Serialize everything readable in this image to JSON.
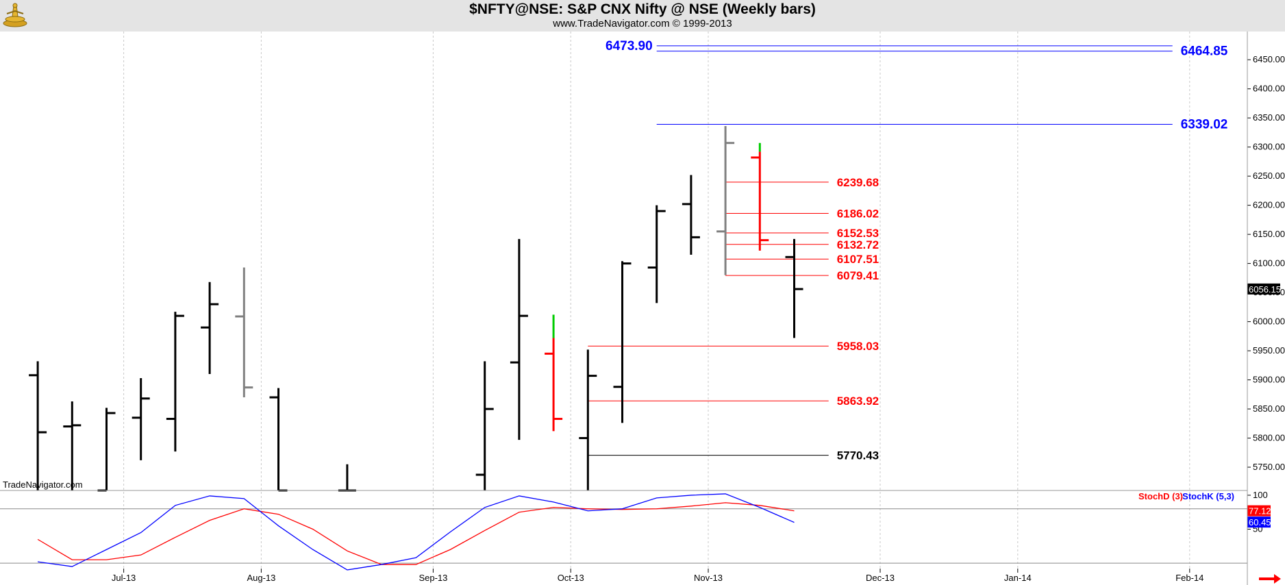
{
  "header": {
    "title": "$NFTY@NSE:  S&P CNX Nifty @ NSE  (Weekly bars)",
    "subtitle": "www.TradeNavigator.com © 1999-2013"
  },
  "watermark": "TradeNavigator.com",
  "colors": {
    "bar_black": "#000000",
    "bar_gray": "#808080",
    "bar_red": "#ff0000",
    "bar_green": "#00cc00",
    "level_blue": "#0000ff",
    "level_red": "#ff0000",
    "stoch_d": "#ff0000",
    "stoch_k": "#0000ff"
  },
  "chart_data": [
    {
      "type": "ohlc",
      "title": "$NFTY@NSE:  S&P CNX Nifty @ NSE  (Weekly bars)",
      "ylim": [
        5710,
        6482
      ],
      "y_ticks": [
        "5750.00",
        "5800.00",
        "5850.00",
        "5900.00",
        "5950.00",
        "6000.00",
        "6050.00",
        "6100.00",
        "6150.00",
        "6200.00",
        "6250.00",
        "6300.00",
        "6350.00",
        "6400.00",
        "6450.00"
      ],
      "x_labels": [
        {
          "label": "Jul-13",
          "week": 3
        },
        {
          "label": "Aug-13",
          "week": 7
        },
        {
          "label": "Sep-13",
          "week": 12
        },
        {
          "label": "Oct-13",
          "week": 16
        },
        {
          "label": "Nov-13",
          "week": 20
        },
        {
          "label": "Dec-13",
          "week": 25
        },
        {
          "label": "Jan-14",
          "week": 29
        },
        {
          "label": "Feb-14",
          "week": 34
        }
      ],
      "week_gridlines": [
        3,
        7,
        12,
        16,
        20,
        25,
        29,
        34
      ],
      "bars": [
        {
          "week": 0.5,
          "o": 5908,
          "h": 5932,
          "l": 5700,
          "c": 5810,
          "color": "black"
        },
        {
          "week": 1.5,
          "o": 5820,
          "h": 5863,
          "l": 5700,
          "c": 5822,
          "color": "black"
        },
        {
          "week": 2.5,
          "o": 5700,
          "h": 5852,
          "l": 5700,
          "c": 5843,
          "color": "black"
        },
        {
          "week": 3.5,
          "o": 5835,
          "h": 5903,
          "l": 5762,
          "c": 5868,
          "color": "black"
        },
        {
          "week": 4.5,
          "o": 5833,
          "h": 6017,
          "l": 5777,
          "c": 6010,
          "color": "black"
        },
        {
          "week": 5.5,
          "o": 5990,
          "h": 6068,
          "l": 5910,
          "c": 6030,
          "color": "black"
        },
        {
          "week": 6.5,
          "o": 6009,
          "h": 6093,
          "l": 5870,
          "c": 5887,
          "color": "gray"
        },
        {
          "week": 7.5,
          "o": 5870,
          "h": 5886,
          "l": 5700,
          "c": 5700,
          "color": "black"
        },
        {
          "week": 9.5,
          "o": 5700,
          "h": 5755,
          "l": 5700,
          "c": 5700,
          "color": "black"
        },
        {
          "week": 13.5,
          "o": 5737,
          "h": 5932,
          "l": 5700,
          "c": 5850,
          "color": "black"
        },
        {
          "week": 14.5,
          "o": 5930,
          "h": 6142,
          "l": 5797,
          "c": 6010,
          "color": "black"
        },
        {
          "week": 15.5,
          "o": 5945,
          "h": 6012,
          "l": 5812,
          "c": 5833,
          "color": "red",
          "wick": "green"
        },
        {
          "week": 16.5,
          "o": 5800,
          "h": 5952,
          "l": 5700,
          "c": 5907,
          "color": "black"
        },
        {
          "week": 17.5,
          "o": 5888,
          "h": 6104,
          "l": 5826,
          "c": 6100,
          "color": "black"
        },
        {
          "week": 18.5,
          "o": 6093,
          "h": 6200,
          "l": 6032,
          "c": 6190,
          "color": "black"
        },
        {
          "week": 19.5,
          "o": 6202,
          "h": 6252,
          "l": 6115,
          "c": 6145,
          "color": "black"
        },
        {
          "week": 20.5,
          "o": 6155,
          "h": 6336,
          "l": 6080,
          "c": 6307,
          "color": "gray"
        },
        {
          "week": 21.5,
          "o": 6282,
          "h": 6307,
          "l": 6122,
          "c": 6140,
          "color": "red",
          "wick": "green"
        },
        {
          "week": 22.5,
          "o": 6111,
          "h": 6142,
          "l": 5972,
          "c": 6056,
          "color": "black"
        }
      ],
      "last_price": "6056.15",
      "levels": [
        {
          "value": 6473.9,
          "label": "6473.90",
          "color": "blue",
          "label_side": "left",
          "x_from_week": 18.5,
          "x_to_week": 33.5
        },
        {
          "value": 6464.85,
          "label": "6464.85",
          "color": "blue",
          "label_side": "right",
          "x_from_week": 18.5,
          "x_to_week": 33.5
        },
        {
          "value": 6339.02,
          "label": "6339.02",
          "color": "blue",
          "label_side": "right",
          "x_from_week": 18.5,
          "x_to_week": 33.5
        },
        {
          "value": 6239.68,
          "label": "6239.68",
          "color": "red",
          "label_side": "right",
          "x_from_week": 20.5,
          "x_to_week": 23.5
        },
        {
          "value": 6186.02,
          "label": "6186.02",
          "color": "red",
          "label_side": "right",
          "x_from_week": 20.5,
          "x_to_week": 23.5
        },
        {
          "value": 6152.53,
          "label": "6152.53",
          "color": "red",
          "label_side": "right",
          "x_from_week": 20.5,
          "x_to_week": 23.5
        },
        {
          "value": 6132.72,
          "label": "6132.72",
          "color": "red",
          "label_side": "right",
          "x_from_week": 20.5,
          "x_to_week": 23.5
        },
        {
          "value": 6107.51,
          "label": "6107.51",
          "color": "red",
          "label_side": "right",
          "x_from_week": 20.5,
          "x_to_week": 23.5
        },
        {
          "value": 6079.41,
          "label": "6079.41",
          "color": "red",
          "label_side": "right",
          "x_from_week": 20.5,
          "x_to_week": 23.5
        },
        {
          "value": 5958.03,
          "label": "5958.03",
          "color": "red",
          "label_side": "right",
          "x_from_week": 16.5,
          "x_to_week": 23.5
        },
        {
          "value": 5863.92,
          "label": "5863.92",
          "color": "red",
          "label_side": "right",
          "x_from_week": 16.5,
          "x_to_week": 23.5
        },
        {
          "value": 5770.43,
          "label": "5770.43",
          "color": "black",
          "label_side": "right",
          "x_from_week": 16.5,
          "x_to_week": 23.5
        }
      ]
    },
    {
      "type": "line",
      "title": "",
      "legend": [
        "StochD (3)",
        "StochK (5,3)"
      ],
      "ylim": [
        -8,
        107
      ],
      "y_ticks": [
        "100",
        "50"
      ],
      "ref_lines": [
        80,
        0
      ],
      "last_d": "77.12",
      "last_k": "60.45",
      "series": [
        {
          "name": "StochD (3)",
          "color": "red",
          "x": [
            0.5,
            1.5,
            2.5,
            3.5,
            4.5,
            5.5,
            6.5,
            7.5,
            8.5,
            9.5,
            10.5,
            11.5,
            12.5,
            13.5,
            14.5,
            15.5,
            16.5,
            17.5,
            18.5,
            19.5,
            20.5,
            21.5,
            22.5
          ],
          "values": [
            35,
            5,
            5,
            12,
            38,
            63,
            80,
            72,
            50,
            18,
            -2,
            -2,
            20,
            48,
            75,
            82,
            80,
            79,
            80,
            84,
            89,
            85,
            77
          ]
        },
        {
          "name": "StochK (5,3)",
          "color": "blue",
          "x": [
            0.5,
            1.5,
            2.5,
            3.5,
            4.5,
            5.5,
            6.5,
            7.5,
            8.5,
            9.5,
            10.5,
            11.5,
            12.5,
            13.5,
            14.5,
            15.5,
            16.5,
            17.5,
            18.5,
            19.5,
            20.5,
            21.5,
            22.5
          ],
          "values": [
            2,
            -5,
            20,
            45,
            85,
            99,
            95,
            55,
            20,
            -10,
            -2,
            8,
            46,
            82,
            99,
            90,
            77,
            80,
            96,
            100,
            102,
            82,
            60
          ]
        }
      ]
    }
  ]
}
